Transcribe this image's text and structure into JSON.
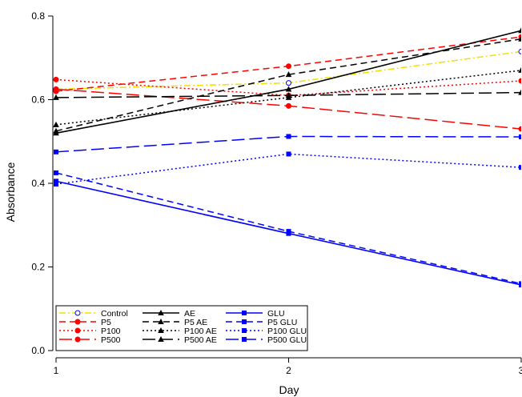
{
  "chart_data": {
    "type": "line",
    "xlabel": "Day",
    "ylabel": "Absorbance",
    "x": [
      1,
      2,
      3
    ],
    "xticks": [
      "1",
      "2",
      "3"
    ],
    "yticks": [
      "0.0",
      "0.2",
      "0.4",
      "0.6",
      "0.8"
    ],
    "xlim": [
      1,
      3
    ],
    "ylim": [
      0,
      0.8
    ],
    "grid": false,
    "legend_position": "bottom-left",
    "series": [
      {
        "name": "Control",
        "values": [
          0.625,
          0.64,
          0.715
        ],
        "color": "#f0e000",
        "dash": "dashdot",
        "marker": "circle-open"
      },
      {
        "name": "P5",
        "values": [
          0.62,
          0.68,
          0.75
        ],
        "color": "#ff0000",
        "dash": "dash",
        "marker": "circle"
      },
      {
        "name": "P100",
        "values": [
          0.648,
          0.61,
          0.645
        ],
        "color": "#ff0000",
        "dash": "dot",
        "marker": "circle"
      },
      {
        "name": "P500",
        "values": [
          0.625,
          0.585,
          0.53
        ],
        "color": "#ff0000",
        "dash": "longdash",
        "marker": "circle"
      },
      {
        "name": "AE",
        "values": [
          0.52,
          0.625,
          0.765
        ],
        "color": "#000000",
        "dash": "solid",
        "marker": "triangle"
      },
      {
        "name": "P5 AE",
        "values": [
          0.525,
          0.66,
          0.745
        ],
        "color": "#000000",
        "dash": "dash",
        "marker": "triangle"
      },
      {
        "name": "P100 AE",
        "values": [
          0.54,
          0.605,
          0.67
        ],
        "color": "#000000",
        "dash": "dot",
        "marker": "triangle"
      },
      {
        "name": "P500 AE",
        "values": [
          0.605,
          0.61,
          0.617
        ],
        "color": "#000000",
        "dash": "longdash",
        "marker": "triangle"
      },
      {
        "name": "GLU",
        "values": [
          0.405,
          0.28,
          0.157
        ],
        "color": "#0000ff",
        "dash": "solid",
        "marker": "square"
      },
      {
        "name": "P5 GLU",
        "values": [
          0.425,
          0.285,
          0.16
        ],
        "color": "#0000ff",
        "dash": "dash",
        "marker": "square"
      },
      {
        "name": "P100 GLU",
        "values": [
          0.398,
          0.47,
          0.438
        ],
        "color": "#0000ff",
        "dash": "dot",
        "marker": "square"
      },
      {
        "name": "P500 GLU",
        "values": [
          0.475,
          0.512,
          0.511
        ],
        "color": "#0000ff",
        "dash": "longdash",
        "marker": "square"
      }
    ]
  }
}
